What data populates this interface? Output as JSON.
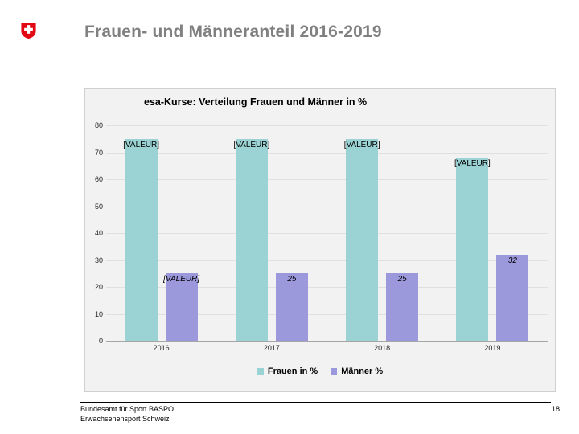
{
  "slide": {
    "title": "Frauen- und Männeranteil 2016-2019",
    "footer_line1": "Bundesamt für Sport BASPO",
    "footer_line2": "Erwachsenensport Schweiz",
    "page_number": "18"
  },
  "logo": {
    "name": "swiss-federal-shield",
    "shield_color": "#E30613",
    "cross_color": "#FFFFFF"
  },
  "chart_data": {
    "type": "bar",
    "title": "esa-Kurse: Verteilung Frauen und Männer in %",
    "categories": [
      "2016",
      "2017",
      "2018",
      "2019"
    ],
    "series": [
      {
        "name": "Frauen in %",
        "color": "#9BD3D4",
        "values": [
          75,
          75,
          75,
          68
        ],
        "labels": [
          "[VALEUR]",
          "[VALEUR]",
          "[VALEUR]",
          "[VALEUR]"
        ],
        "label_style": "normal"
      },
      {
        "name": "Männer %",
        "color": "#9B99DC",
        "values": [
          25,
          25,
          25,
          32
        ],
        "labels": [
          "[VALEUR]",
          "25",
          "25",
          "32"
        ],
        "label_style": "italic"
      }
    ],
    "xlabel": "",
    "ylabel": "",
    "ylim": [
      0,
      80
    ],
    "yticks": [
      0,
      10,
      20,
      30,
      40,
      50,
      60,
      70,
      80
    ],
    "grid": true,
    "plot_background": "#F2F2F2",
    "gridline_color": "#E0E0E0",
    "axis_line_color": "#A6A6A6",
    "legend_position": "bottom"
  }
}
